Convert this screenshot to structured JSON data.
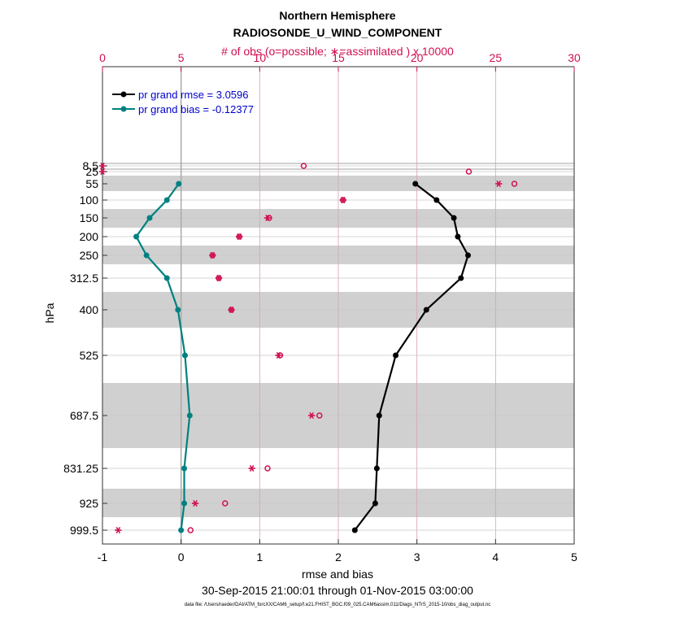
{
  "chart_data": {
    "type": "line",
    "title": "Northern Hemisphere",
    "subtitle": "RADIOSONDE_U_WIND_COMPONENT",
    "top_axis_label": "# of obs (o=possible; ∗=assimilated ) x 10000",
    "xlabel": "rmse and bias",
    "ylabel": "hPa",
    "date_range": "30-Sep-2015 21:00:01 through 01-Nov-2015 03:00:00",
    "footnote": "data file: /Users/raeder/DAI/ATM_forcXX/CAM6_setup/f.e21.FHIST_BGC.f09_025.CAM6assim.011/Diags_NTrS_2015-10/obs_diag_output.nc",
    "xlim": [
      -1,
      5
    ],
    "x_ticks": [
      "-1",
      "0",
      "1",
      "2",
      "3",
      "4",
      "5"
    ],
    "top_xlim": [
      0,
      30
    ],
    "top_ticks": [
      "0",
      "5",
      "10",
      "15",
      "20",
      "25",
      "30"
    ],
    "levels": [
      8.5,
      25,
      55,
      100,
      150,
      200,
      250,
      312.5,
      400,
      525,
      687.5,
      831.25,
      925,
      999.5
    ],
    "level_labels": [
      "8.5",
      "25",
      "55",
      "100",
      "150",
      "200",
      "250",
      "312.5",
      "400",
      "525",
      "687.5",
      "831.25",
      "925",
      "999.5"
    ],
    "series": [
      {
        "name": "pr grand rmse = 3.0596",
        "color": "#000000",
        "levels": [
          55,
          100,
          150,
          200,
          250,
          312.5,
          400,
          525,
          687.5,
          831.25,
          925,
          999.5
        ],
        "values": [
          2.98,
          3.25,
          3.47,
          3.52,
          3.65,
          3.56,
          3.12,
          2.73,
          2.52,
          2.49,
          2.47,
          2.21
        ]
      },
      {
        "name": "pr grand bias = -0.12377",
        "color": "#008080",
        "levels": [
          55,
          100,
          150,
          200,
          250,
          312.5,
          400,
          525,
          687.5,
          831.25,
          925,
          999.5
        ],
        "values": [
          -0.03,
          -0.18,
          -0.4,
          -0.57,
          -0.44,
          -0.18,
          -0.04,
          0.05,
          0.11,
          0.04,
          0.04,
          0.0
        ]
      }
    ],
    "obs_possible": {
      "levels": [
        8.5,
        25,
        55,
        100,
        150,
        200,
        250,
        312.5,
        400,
        525,
        687.5,
        831.25,
        925,
        999.5
      ],
      "values": [
        12.8,
        23.3,
        26.2,
        15.3,
        10.6,
        8.7,
        7.0,
        7.4,
        8.2,
        11.3,
        13.8,
        10.5,
        7.8,
        5.6
      ]
    },
    "obs_assimilated": {
      "levels": [
        8.5,
        25,
        55,
        100,
        150,
        200,
        250,
        312.5,
        400,
        525,
        687.5,
        831.25,
        925,
        999.5
      ],
      "values": [
        0.0,
        0.0,
        25.2,
        15.3,
        10.5,
        8.7,
        7.0,
        7.4,
        8.2,
        11.2,
        13.3,
        9.5,
        5.9,
        1.0
      ]
    },
    "zero_line": 0,
    "grid": true
  }
}
